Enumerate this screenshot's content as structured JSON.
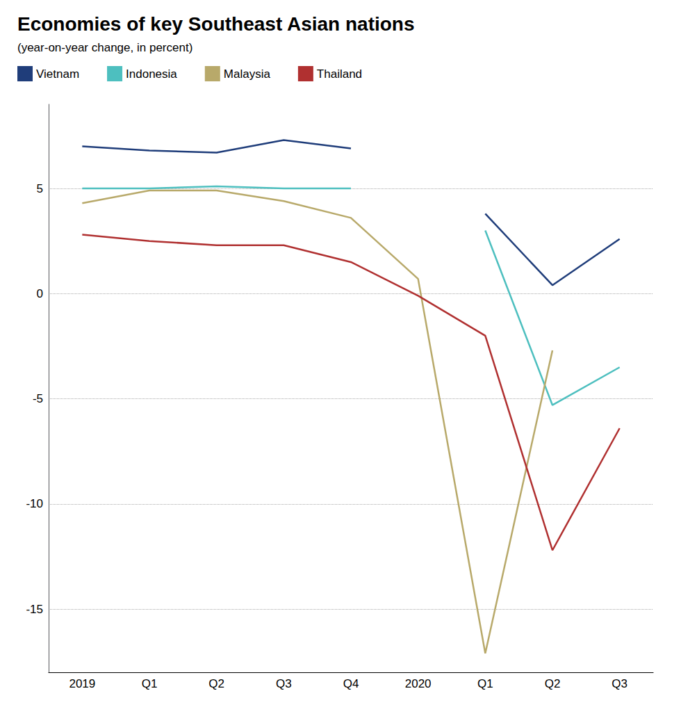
{
  "chart_data": {
    "type": "line",
    "title": "Economies of key Southeast Asian nations",
    "subtitle": "(year-on-year change, in percent)",
    "categories": [
      "2019",
      "Q1",
      "Q2",
      "Q3",
      "Q4",
      "2020",
      "Q1",
      "Q2",
      "Q3"
    ],
    "series": [
      {
        "name": "Vietnam",
        "color": "#1f3d7a",
        "values": [
          7.0,
          6.8,
          6.7,
          7.3,
          6.9,
          null,
          3.8,
          0.4,
          2.6
        ]
      },
      {
        "name": "Indonesia",
        "color": "#4dbfbf",
        "values": [
          5.0,
          5.0,
          5.1,
          5.0,
          5.0,
          null,
          3.0,
          -5.3,
          -3.5
        ]
      },
      {
        "name": "Malaysia",
        "color": "#b8a96a",
        "values": [
          4.3,
          4.9,
          4.9,
          4.4,
          3.6,
          0.7,
          -17.1,
          -2.7,
          null
        ]
      },
      {
        "name": "Thailand",
        "color": "#b03030",
        "values": [
          2.8,
          2.5,
          2.3,
          2.3,
          1.5,
          -0.1,
          -2.0,
          -12.2,
          -6.4
        ]
      }
    ],
    "ylim": [
      -18,
      9
    ],
    "yticks": [
      -15,
      -10,
      -5,
      0,
      5
    ],
    "grid": true,
    "legend": "upper left"
  }
}
